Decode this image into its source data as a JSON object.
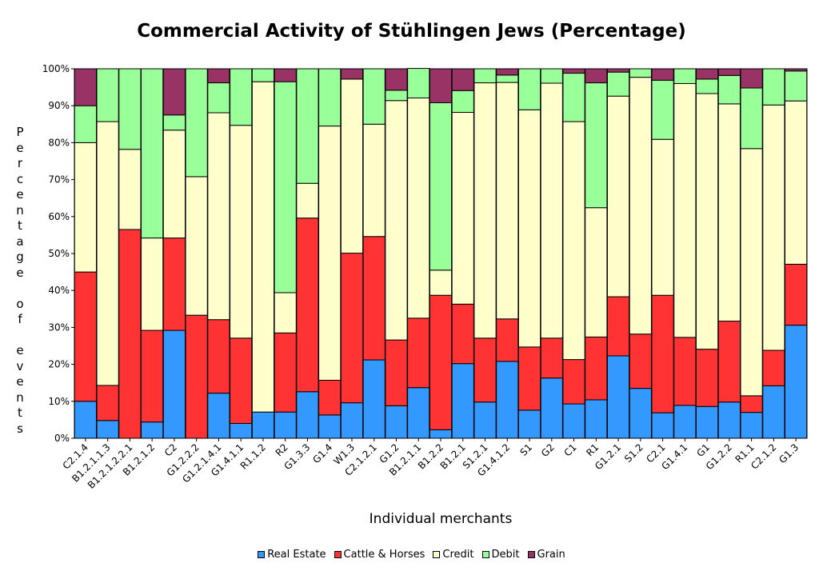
{
  "chart_data": {
    "type": "bar",
    "stacked": true,
    "title": "Commercial Activity of Stühlingen Jews (Percentage)",
    "xlabel": "Individual merchants",
    "ylabel": "Percentage of events",
    "ylim": [
      0,
      100
    ],
    "yticks": [
      "0%",
      "10%",
      "20%",
      "30%",
      "40%",
      "50%",
      "60%",
      "70%",
      "80%",
      "90%",
      "100%"
    ],
    "legend_position": "bottom",
    "categories": [
      "C2.1.4",
      "B1.2.1.1.3",
      "B1.2.1.2.2.1",
      "B1.2.1.2",
      "C2",
      "G1.2.2.2",
      "G1.2.1.4.1",
      "G1.4.1.1",
      "R1.1.2",
      "R2",
      "G1.3.3",
      "G1.4",
      "W1.3",
      "C2.1.2.1",
      "G1.2",
      "B1.2.1.1",
      "B1.2.2",
      "B1.2.1",
      "S1.2.1",
      "G1.4.1.2",
      "S1",
      "G2",
      "C1",
      "R1",
      "G1.2.1",
      "S1.2",
      "C2.1",
      "G1.4.1",
      "G1",
      "G1.2.2",
      "R1.1",
      "C2.1.2",
      "G1.3"
    ],
    "series": [
      {
        "name": "Real Estate",
        "color": "#3399ff",
        "values": [
          10,
          4.8,
          0,
          4.4,
          29.2,
          0,
          12.2,
          4,
          7.1,
          7.1,
          12.6,
          6.3,
          9.6,
          21.2,
          8.8,
          13.7,
          2.3,
          20.2,
          9.8,
          20.8,
          7.6,
          16.3,
          9.3,
          10.4,
          22.3,
          13.5,
          6.9,
          8.9,
          8.6,
          9.8,
          7,
          14.2,
          30.6
        ]
      },
      {
        "name": "Cattle & Horses",
        "color": "#ff3333",
        "values": [
          35,
          9.5,
          56.5,
          24.8,
          25,
          33.3,
          19.9,
          23.1,
          0,
          21.4,
          47,
          9.4,
          40.5,
          33.4,
          17.8,
          18.8,
          36.4,
          16.1,
          17.3,
          11.5,
          17.1,
          10.8,
          12,
          17,
          16,
          14.7,
          31.8,
          18.4,
          15.5,
          21.9,
          4.5,
          9.6,
          16.5
        ]
      },
      {
        "name": "Credit",
        "color": "#ffffcc",
        "values": [
          35,
          71.4,
          21.7,
          25,
          29.2,
          37.5,
          56,
          57.6,
          89.4,
          10.9,
          9.4,
          68.8,
          47.1,
          30.4,
          64.8,
          59.6,
          6.8,
          51.9,
          69.1,
          64,
          64.2,
          69,
          64.4,
          35,
          54.3,
          69.5,
          42.2,
          68.7,
          69.2,
          58.8,
          66.9,
          66.4,
          44.2
        ]
      },
      {
        "name": "Debit",
        "color": "#99ff99",
        "values": [
          10,
          14.3,
          21.8,
          45.8,
          4.1,
          29.2,
          8.1,
          15.3,
          3.5,
          57.1,
          31,
          15.5,
          0,
          15,
          2.8,
          8,
          45.3,
          5.9,
          3.8,
          2,
          11.1,
          3.9,
          13.1,
          33.8,
          6.5,
          2.3,
          16,
          4,
          3.9,
          7.7,
          16.4,
          9.8,
          8.1
        ]
      },
      {
        "name": "Grain",
        "color": "#993366",
        "values": [
          10,
          0,
          0,
          0,
          12.5,
          0,
          3.8,
          0,
          0,
          3.5,
          0,
          0,
          2.8,
          0,
          5.8,
          0,
          9.2,
          5.9,
          0,
          1.7,
          0,
          0,
          1.2,
          3.8,
          0.9,
          0,
          3.1,
          0,
          2.8,
          1.8,
          5.2,
          0,
          0.6
        ]
      }
    ]
  }
}
